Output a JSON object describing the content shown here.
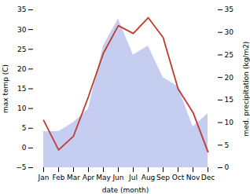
{
  "chart_data": {
    "type": "line",
    "categories": [
      "Jan",
      "Feb",
      "Mar",
      "Apr",
      "May",
      "Jun",
      "Jul",
      "Aug",
      "Sep",
      "Oct",
      "Nov",
      "Dec"
    ],
    "xlabel": "date (month)",
    "ylabel": "max temp (C)",
    "y2label": "med. precipitation (kg/m2)",
    "series": [
      {
        "type": "area",
        "axis": "y2",
        "color": "#c5cdf0",
        "values": [
          8,
          8,
          10,
          13,
          27,
          33,
          25,
          27,
          20,
          18,
          9,
          12
        ]
      },
      {
        "type": "line",
        "color": "#c0392b",
        "values": [
          7,
          -0.5,
          3,
          13,
          24,
          31,
          29,
          33,
          28,
          15,
          9,
          -1
        ]
      }
    ],
    "ylim": [
      -5,
      35
    ],
    "yticks": [
      -5,
      0,
      5,
      10,
      15,
      20,
      25,
      30,
      35
    ],
    "y2lim": [
      0,
      35
    ],
    "y2ticks": [
      0,
      5,
      10,
      15,
      20,
      25,
      30,
      35
    ]
  }
}
